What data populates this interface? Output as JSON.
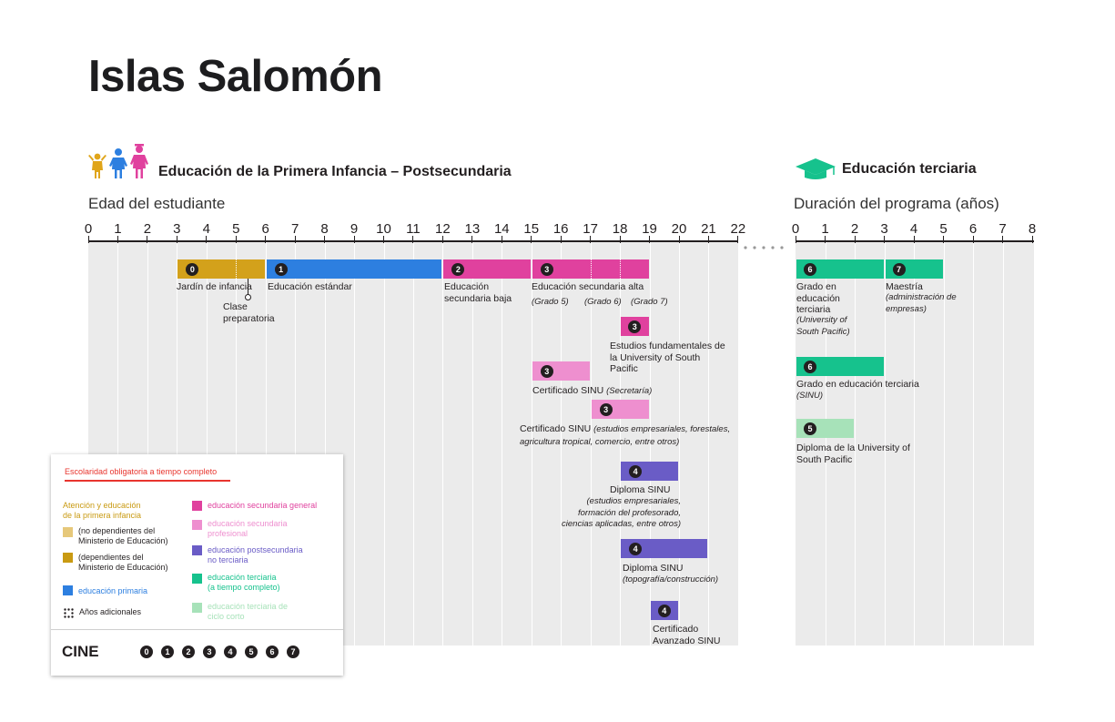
{
  "title": "Islas Salomón",
  "left_section": {
    "heading": "Educación de la Primera Infancia – Postsecundaria",
    "axis_title": "Edad del estudiante",
    "ticks": [
      "0",
      "1",
      "2",
      "3",
      "4",
      "5",
      "6",
      "7",
      "8",
      "9",
      "10",
      "11",
      "12",
      "13",
      "14",
      "15",
      "16",
      "17",
      "18",
      "19",
      "20",
      "21",
      "22"
    ]
  },
  "right_section": {
    "heading": "Educación terciaria",
    "axis_title": "Duración del programa (años)",
    "ticks": [
      "0",
      "1",
      "2",
      "3",
      "4",
      "5",
      "6",
      "7",
      "8"
    ]
  },
  "programs": [
    {
      "level": "0",
      "label": "Jardín de infancia",
      "start_age": 3,
      "end_age": 6,
      "color": "#d3a11b"
    },
    {
      "level": "",
      "label": "Clase preparatoria",
      "start_age": 5,
      "end_age": 6,
      "color": "#d3a11b"
    },
    {
      "level": "1",
      "label": "Educación estándar",
      "start_age": 6,
      "end_age": 12,
      "color": "#2d7fe0"
    },
    {
      "level": "2",
      "label": "Educación secundaria baja",
      "start_age": 12,
      "end_age": 15,
      "color": "#e0419e"
    },
    {
      "level": "3",
      "label": "Educación secundaria alta",
      "start_age": 15,
      "end_age": 19,
      "color": "#e0419e",
      "grades": [
        "(Grado 5)",
        "(Grado 6)",
        "(Grado 7)"
      ]
    },
    {
      "level": "3",
      "label": "Estudios fundamentales de la University of South Pacific",
      "start_age": 18,
      "end_age": 19,
      "color": "#e0419e"
    },
    {
      "level": "3",
      "label": "Certificado SINU",
      "note": "(Secretaría)",
      "start_age": 15,
      "end_age": 17,
      "color": "#ee8fcf"
    },
    {
      "level": "3",
      "label": "Certificado SINU",
      "note": "(estudios empresariales, forestales, agricultura tropical, comercio, entre otros)",
      "start_age": 17,
      "end_age": 19,
      "color": "#ee8fcf"
    },
    {
      "level": "4",
      "label": "Diploma SINU",
      "note": "(estudios empresariales, formación del profesorado, ciencias aplicadas, entre otros)",
      "start_age": 18,
      "end_age": 20,
      "color": "#6a5cc6"
    },
    {
      "level": "4",
      "label": "Diploma SINU",
      "note": "(topografía/construcción)",
      "start_age": 18,
      "end_age": 21,
      "color": "#6a5cc6"
    },
    {
      "level": "4",
      "label": "Certificado Avanzado SINU",
      "start_age": 19,
      "end_age": 20,
      "color": "#6a5cc6"
    }
  ],
  "tertiary": [
    {
      "level": "6",
      "label": "Grado en educación terciaria",
      "note": "(University of South Pacific)",
      "start": 0,
      "end": 3,
      "color": "#16c28d"
    },
    {
      "level": "7",
      "label": "Maestría",
      "note": "(administración de empresas)",
      "start": 3,
      "end": 5,
      "color": "#16c28d"
    },
    {
      "level": "6",
      "label": "Grado en educación terciaria",
      "note": "(SINU)",
      "start": 0,
      "end": 3,
      "color": "#16c28d"
    },
    {
      "level": "5",
      "label": "Diploma de la University of South Pacific",
      "start": 0,
      "end": 2,
      "color": "#a7e2b9"
    }
  ],
  "legend": {
    "compulsory": "Escolaridad obligatoria a tiempo completo",
    "ecce_title": "Atención y educación de la primera infancia",
    "ecce_title_l1": "Atención y educación",
    "ecce_title_l2": "de la primera infancia",
    "ecce_non_moe_l1": "(no dependientes del",
    "ecce_non_moe_l2": "Ministerio de Educación)",
    "ecce_moe_l1": "(dependientes del",
    "ecce_moe_l2": "Ministerio de Educación)",
    "primary": "educación primaria",
    "additional": "Años adicionales",
    "general_secondary": "educación secundaria general",
    "vocational_l1": "educación secundaria",
    "vocational_l2": "profesional",
    "post_l1": "educación postsecundaria",
    "post_l2": "no terciaria",
    "tertiary_l1": "educación terciaria",
    "tertiary_l2": "(a tiempo completo)",
    "short_l1": "educación terciaria de",
    "short_l2": "ciclo corto",
    "cine_label": "CINE",
    "cine_levels": [
      "0",
      "1",
      "2",
      "3",
      "4",
      "5",
      "6",
      "7"
    ],
    "colors": {
      "compulsory": "#e8352e",
      "ecce": "#c99a12",
      "ecce_light": "#e6c87a",
      "primary": "#2d7fe0",
      "general_secondary": "#e0419e",
      "vocational": "#ee8fcf",
      "post": "#6a5cc6",
      "tertiary": "#16c28d",
      "short": "#a7e2b9"
    }
  },
  "icons": [
    "children-icon",
    "graduation-cap-icon"
  ]
}
